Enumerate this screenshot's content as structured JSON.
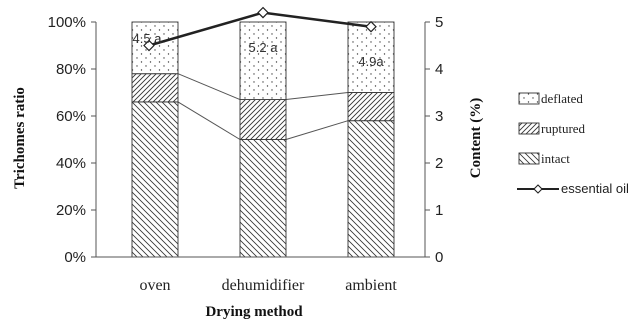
{
  "chart_data": {
    "type": "bar",
    "stacked": true,
    "categories": [
      "oven",
      "dehumidifier",
      "ambient"
    ],
    "series": [
      {
        "name": "intact",
        "values": [
          66,
          50,
          58
        ],
        "pattern": "backslash"
      },
      {
        "name": "ruptured",
        "values": [
          12,
          17,
          12
        ],
        "pattern": "slash"
      },
      {
        "name": "deflated",
        "values": [
          22,
          33,
          30
        ],
        "pattern": "dots"
      }
    ],
    "line_series": {
      "name": "essential oil",
      "values": [
        4.5,
        5.2,
        4.9
      ],
      "labels": [
        "4.5 a",
        "5.2 a",
        "4.9a"
      ]
    },
    "xlabel": "Drying method",
    "ylabel": "Trichomes ratio",
    "y2label": "Content (%)",
    "ylim": [
      0,
      100
    ],
    "y2lim": [
      0,
      5
    ],
    "yticks": [
      "0%",
      "20%",
      "40%",
      "60%",
      "80%",
      "100%"
    ],
    "y2ticks": [
      "0",
      "1",
      "2",
      "3",
      "4",
      "5"
    ],
    "legend": [
      "deflated",
      "ruptured",
      "intact",
      "essential oil"
    ],
    "legend_position": "right",
    "grid": false
  }
}
